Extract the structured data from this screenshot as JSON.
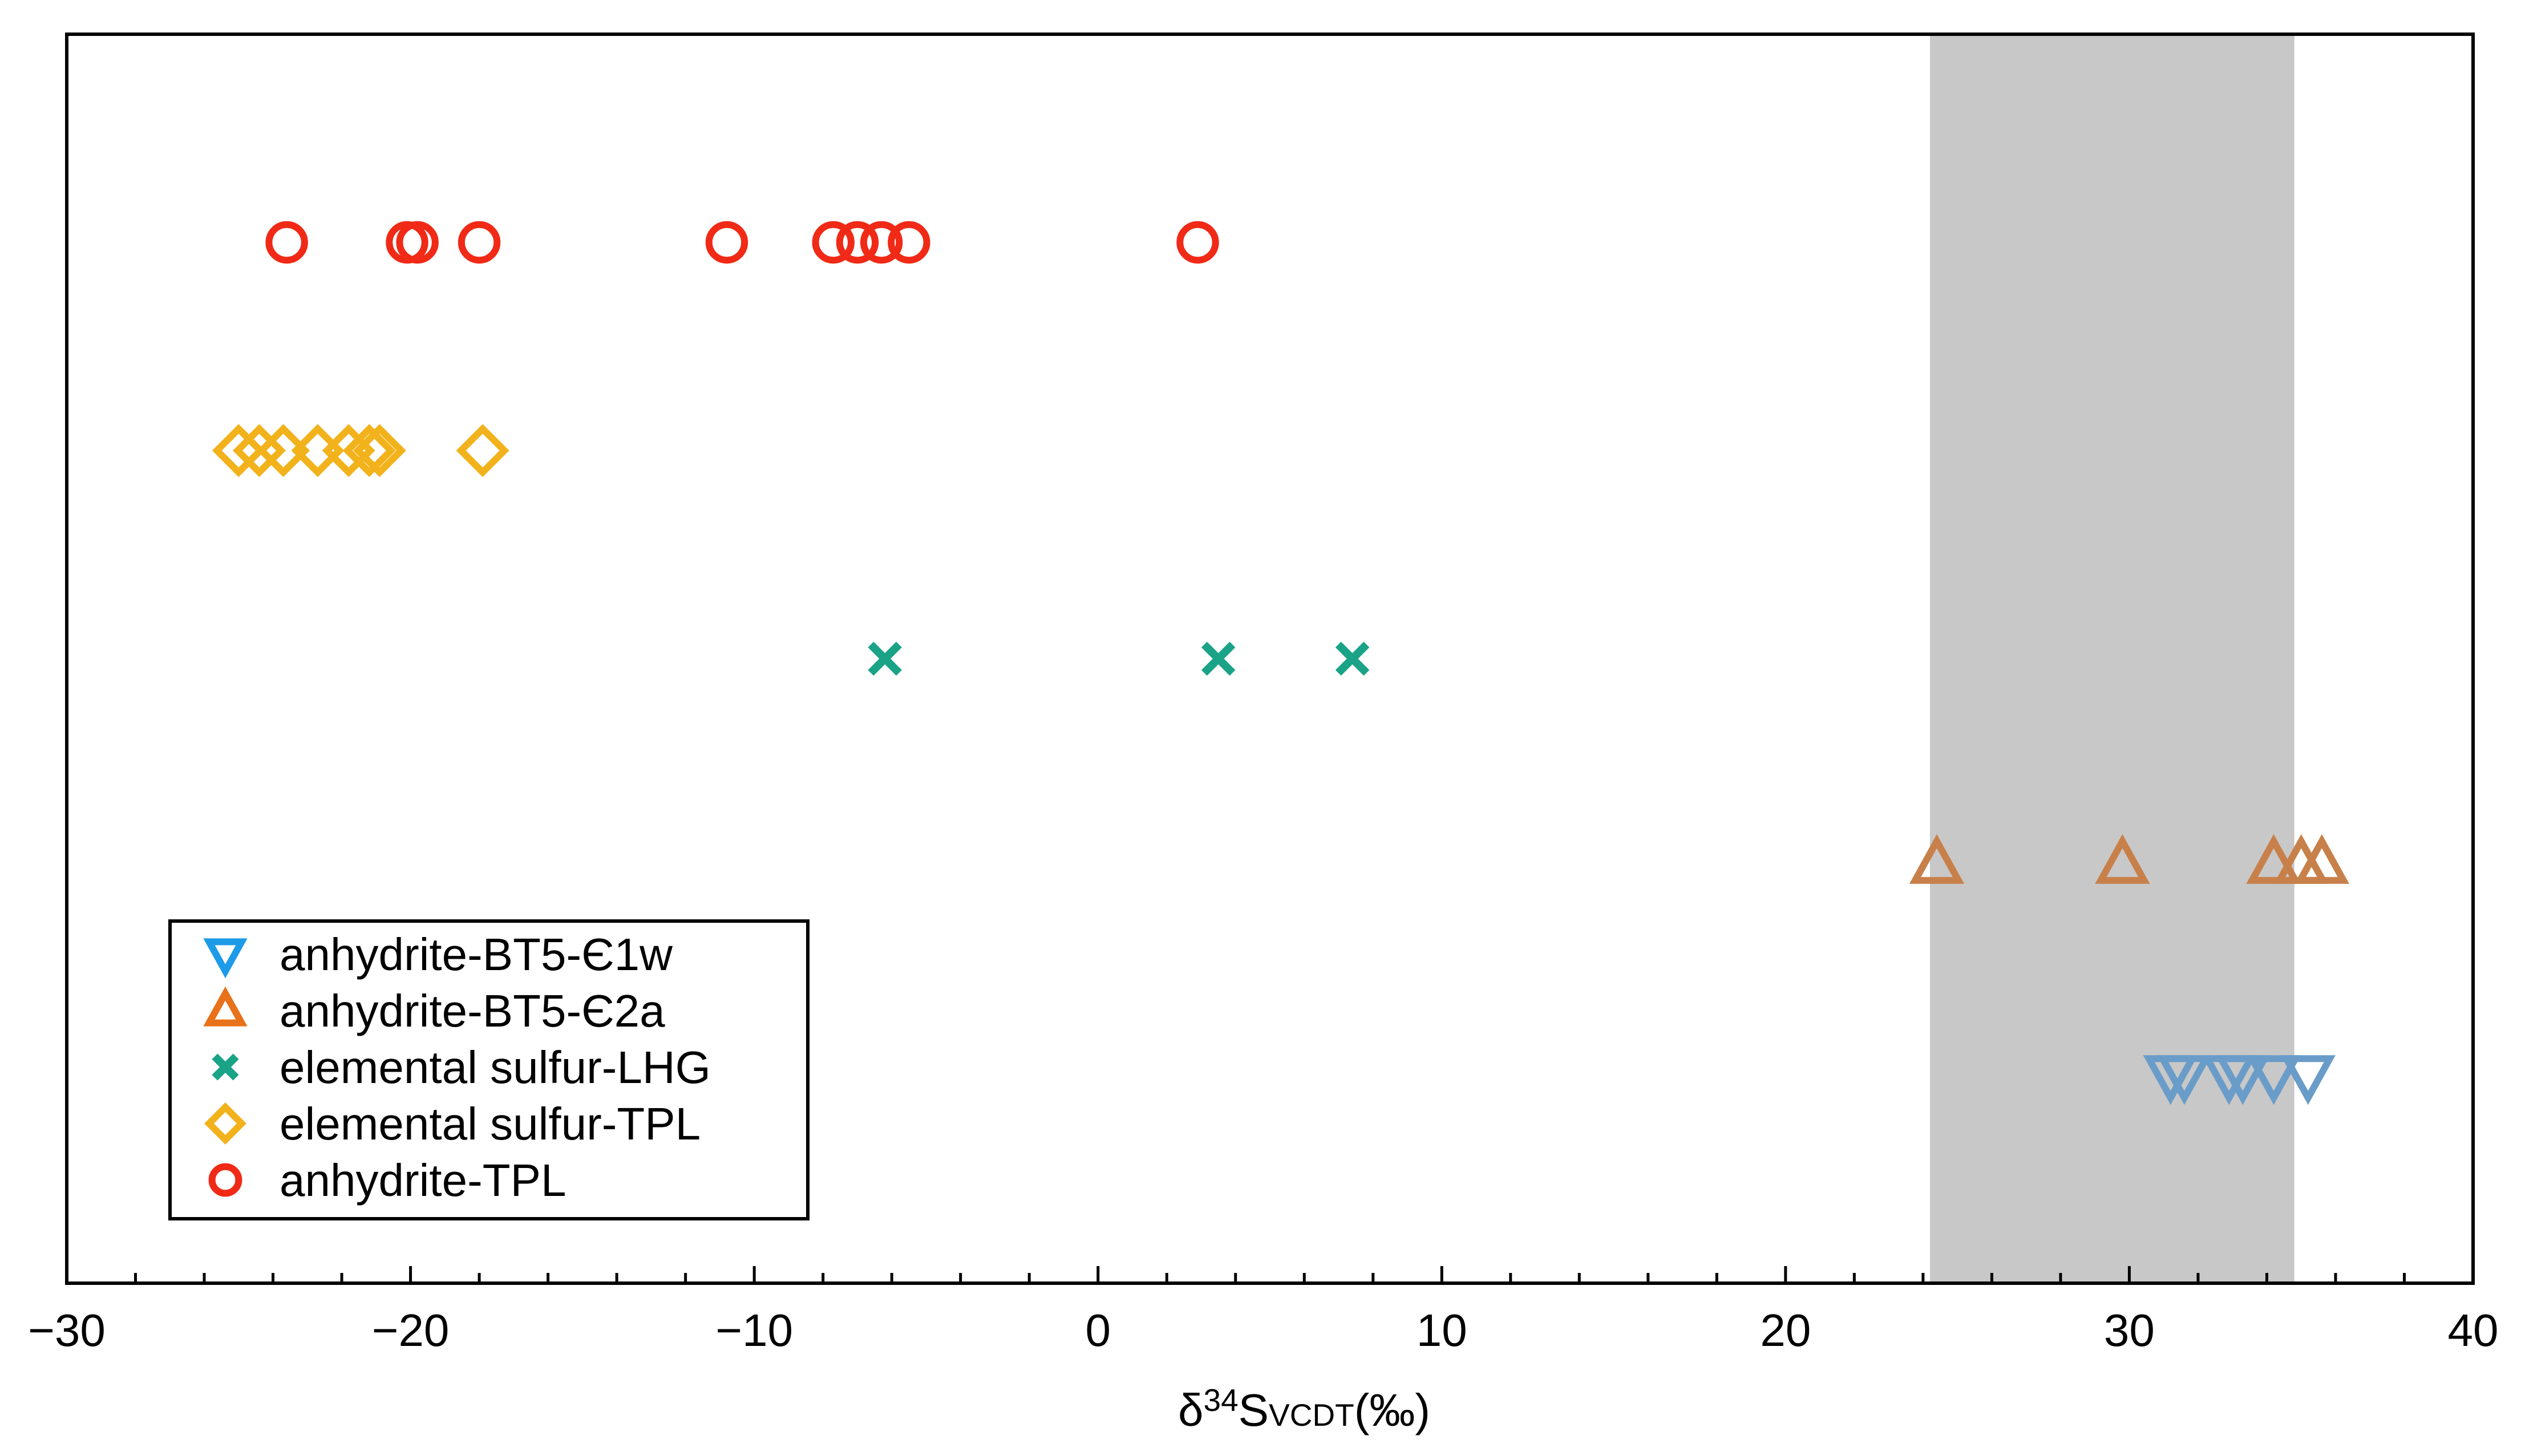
{
  "chart_data": {
    "type": "scatter",
    "title": "",
    "xlabel": {
      "prefix": "δ",
      "sup": "34",
      "main": "S",
      "sub": "VCDT",
      "suffix": "(‰)"
    },
    "ylabel": "",
    "xlim": [
      -30,
      40
    ],
    "xticks": [
      -30,
      -20,
      -10,
      0,
      10,
      20,
      30,
      40
    ],
    "xtick_labels": [
      "−30",
      "−20",
      "−10",
      "0",
      "10",
      "20",
      "30",
      "40"
    ],
    "minor_tick_step": 2,
    "shaded_band": {
      "x_from": 24.2,
      "x_to": 34.8,
      "color": "#c8c8c8"
    },
    "grid": false,
    "legend_position": "bottom-left",
    "series": [
      {
        "name": "anhydrite-BT5-Є1w",
        "marker": "triangle-down",
        "color": "#1e9be8",
        "points_color": "#6a9cc9",
        "x": [
          31.2,
          31.6,
          32.9,
          33.3,
          34.2,
          35.2
        ]
      },
      {
        "name": "anhydrite-BT5-Є2a",
        "marker": "triangle-up",
        "color": "#e8711a",
        "points_color": "#c8804a",
        "x": [
          24.4,
          29.8,
          34.2,
          35.0,
          35.6
        ]
      },
      {
        "name": "elemental sulfur-LHG",
        "marker": "x",
        "color": "#1aa386",
        "points_color": "#1aa386",
        "x": [
          -6.2,
          3.5,
          7.4
        ]
      },
      {
        "name": "elemental sulfur-TPL",
        "marker": "diamond",
        "color": "#f2b21b",
        "points_color": "#f2b21b",
        "x": [
          -25.0,
          -24.4,
          -23.7,
          -22.7,
          -21.8,
          -21.2,
          -20.9,
          -17.9
        ]
      },
      {
        "name": "anhydrite-TPL",
        "marker": "circle",
        "color": "#f02a16",
        "points_color": "#f02a16",
        "x": [
          -23.6,
          -20.1,
          -19.8,
          -18.0,
          -10.8,
          -7.7,
          -7.0,
          -6.3,
          -5.5,
          2.9
        ]
      }
    ]
  }
}
